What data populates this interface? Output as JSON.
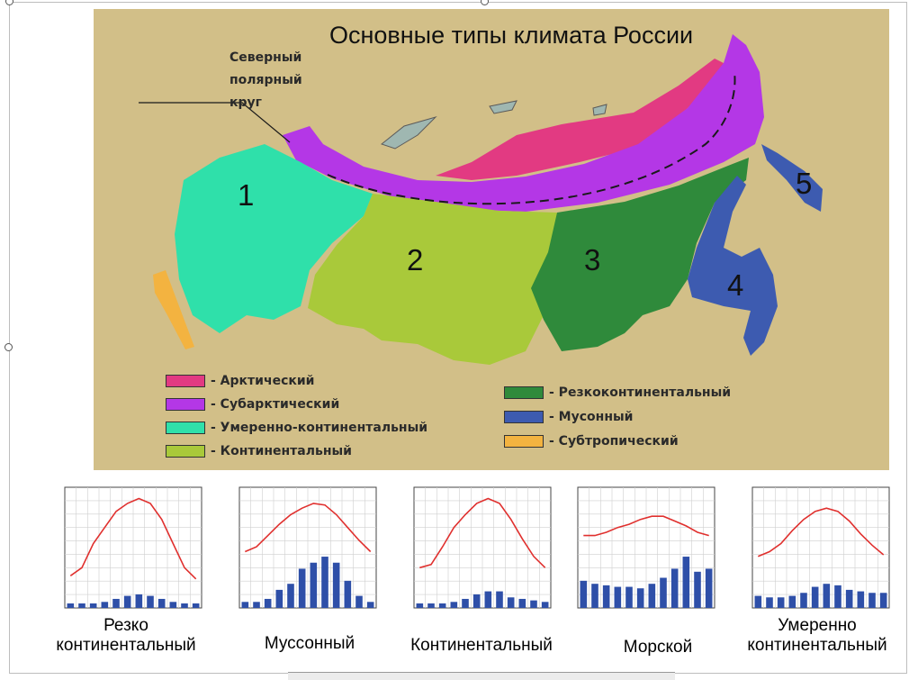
{
  "map": {
    "title": "Основные типы климата России",
    "arctic_circle_label": [
      "Северный",
      "полярный",
      "круг"
    ],
    "region_numbers": [
      "1",
      "2",
      "3",
      "4",
      "5"
    ],
    "colors": {
      "arctic": "#e23a82",
      "subarctic": "#b437e6",
      "temperate_continental": "#2fe0aa",
      "continental": "#a9c93a",
      "sharp_continental": "#2f8a3b",
      "monsoon": "#3d5bb0",
      "subtropical": "#f3b340",
      "background": "#d2bf88"
    }
  },
  "legend": [
    {
      "label": "- Арктический",
      "color": "#e23a82"
    },
    {
      "label": "- Субарктический",
      "color": "#b437e6"
    },
    {
      "label": "- Умеренно-континентальный",
      "color": "#2fe0aa"
    },
    {
      "label": "- Континентальный",
      "color": "#a9c93a"
    },
    {
      "label": "- Резкоконтинентальный",
      "color": "#2f8a3b"
    },
    {
      "label": "- Мусонный",
      "color": "#3d5bb0"
    },
    {
      "label": "- Субтропический",
      "color": "#f3b340"
    }
  ],
  "chart_data": [
    {
      "type": "bar",
      "title": "Резко континентальный",
      "temperature": [
        -20,
        -15,
        0,
        10,
        20,
        25,
        28,
        25,
        15,
        0,
        -15,
        -22
      ],
      "precipitation": [
        15,
        15,
        15,
        20,
        30,
        40,
        45,
        40,
        30,
        20,
        15,
        15
      ]
    },
    {
      "type": "bar",
      "title": "Муссонный",
      "temperature": [
        -5,
        -2,
        5,
        12,
        18,
        22,
        25,
        24,
        18,
        10,
        2,
        -5
      ],
      "precipitation": [
        20,
        20,
        30,
        60,
        80,
        130,
        150,
        170,
        150,
        90,
        40,
        20
      ]
    },
    {
      "type": "bar",
      "title": "Континентальный",
      "temperature": [
        -15,
        -13,
        -2,
        10,
        18,
        25,
        28,
        25,
        15,
        3,
        -8,
        -15
      ],
      "precipitation": [
        15,
        15,
        15,
        20,
        30,
        45,
        55,
        55,
        35,
        30,
        25,
        20
      ]
    },
    {
      "type": "bar",
      "title": "Морской",
      "temperature": [
        5,
        5,
        7,
        10,
        12,
        15,
        17,
        17,
        14,
        11,
        7,
        5
      ],
      "precipitation": [
        90,
        80,
        75,
        70,
        70,
        65,
        80,
        100,
        130,
        170,
        120,
        130
      ]
    },
    {
      "type": "bar",
      "title": "Умеренно континентальный",
      "temperature": [
        -8,
        -5,
        0,
        8,
        15,
        20,
        22,
        20,
        14,
        6,
        -1,
        -7
      ],
      "precipitation": [
        40,
        35,
        35,
        40,
        50,
        70,
        80,
        75,
        60,
        55,
        50,
        50
      ]
    }
  ],
  "captions": [
    [
      "Резко",
      "континентальный"
    ],
    [
      "Муссонный"
    ],
    [
      "Континентальный"
    ],
    [
      "Морской"
    ],
    [
      "Умеренно",
      "континентальный"
    ]
  ]
}
